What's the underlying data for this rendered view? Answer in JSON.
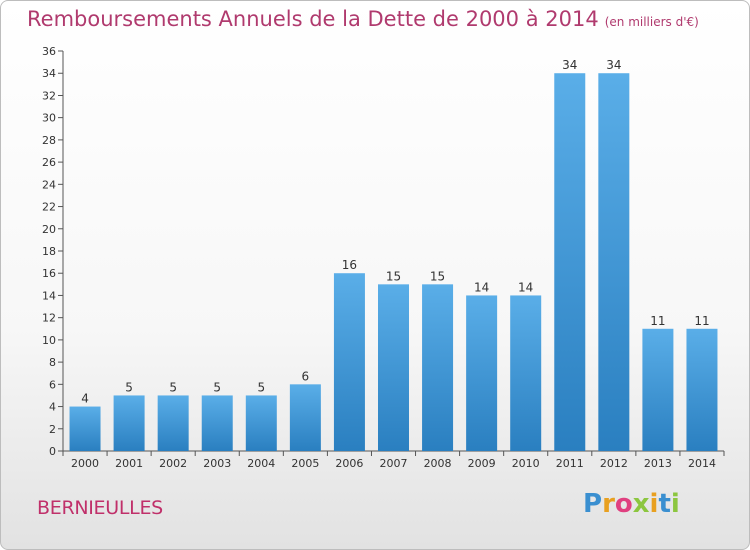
{
  "chart_data": {
    "type": "bar",
    "title": "Remboursements Annuels de la Dette de 2000 à 2014",
    "unit_label": "(en milliers d'€)",
    "categories": [
      "2000",
      "2001",
      "2002",
      "2003",
      "2004",
      "2005",
      "2006",
      "2007",
      "2008",
      "2009",
      "2010",
      "2011",
      "2012",
      "2013",
      "2014"
    ],
    "values": [
      4,
      5,
      5,
      5,
      5,
      6,
      16,
      15,
      15,
      14,
      14,
      34,
      34,
      11,
      11
    ],
    "ylim": [
      0,
      36
    ],
    "ytick_step": 2,
    "grid": false,
    "bar_color_top": "#5aaee8",
    "bar_color_bottom": "#2a7fc0"
  },
  "commune": "BERNIEULLES",
  "logo": {
    "letters": [
      "P",
      "r",
      "o",
      "x",
      "i",
      "t",
      "i"
    ],
    "colors": [
      "#3a8fd0",
      "#e8a020",
      "#e04080",
      "#8cc63f",
      "#e8a020",
      "#3a8fd0",
      "#8cc63f"
    ]
  },
  "colors": {
    "title": "#b03a6e",
    "commune": "#c0306a"
  }
}
